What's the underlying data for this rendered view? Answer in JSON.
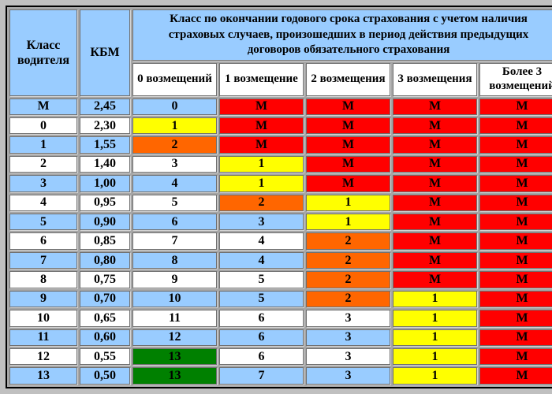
{
  "table": {
    "col_class_header": "Класс водителя",
    "col_kbm_header": "КБМ",
    "span_title": "Класс по окончании годового срока страхования с учетом наличия страховых случаев, произошедших в период действия предыдущих договоров обязательного страхования",
    "sub_columns": [
      "0 возмещений",
      "1 возмещение",
      "2 возмещения",
      "3 возмещения",
      "Более 3 возмещений"
    ],
    "rows": [
      {
        "class": "М",
        "kbm": "2,45",
        "bg": "blue",
        "cells": [
          {
            "v": "0",
            "bg": "row"
          },
          {
            "v": "М",
            "bg": "red"
          },
          {
            "v": "М",
            "bg": "red"
          },
          {
            "v": "М",
            "bg": "red"
          },
          {
            "v": "М",
            "bg": "red"
          }
        ]
      },
      {
        "class": "0",
        "kbm": "2,30",
        "bg": "white",
        "cells": [
          {
            "v": "1",
            "bg": "yellow"
          },
          {
            "v": "М",
            "bg": "red"
          },
          {
            "v": "М",
            "bg": "red"
          },
          {
            "v": "М",
            "bg": "red"
          },
          {
            "v": "М",
            "bg": "red"
          }
        ]
      },
      {
        "class": "1",
        "kbm": "1,55",
        "bg": "blue",
        "cells": [
          {
            "v": "2",
            "bg": "orange"
          },
          {
            "v": "М",
            "bg": "red"
          },
          {
            "v": "М",
            "bg": "red"
          },
          {
            "v": "М",
            "bg": "red"
          },
          {
            "v": "М",
            "bg": "red"
          }
        ]
      },
      {
        "class": "2",
        "kbm": "1,40",
        "bg": "white",
        "cells": [
          {
            "v": "3",
            "bg": "row"
          },
          {
            "v": "1",
            "bg": "yellow"
          },
          {
            "v": "М",
            "bg": "red"
          },
          {
            "v": "М",
            "bg": "red"
          },
          {
            "v": "М",
            "bg": "red"
          }
        ]
      },
      {
        "class": "3",
        "kbm": "1,00",
        "bg": "blue",
        "cells": [
          {
            "v": "4",
            "bg": "row"
          },
          {
            "v": "1",
            "bg": "yellow"
          },
          {
            "v": "М",
            "bg": "red"
          },
          {
            "v": "М",
            "bg": "red"
          },
          {
            "v": "М",
            "bg": "red"
          }
        ]
      },
      {
        "class": "4",
        "kbm": "0,95",
        "bg": "white",
        "cells": [
          {
            "v": "5",
            "bg": "row"
          },
          {
            "v": "2",
            "bg": "orange"
          },
          {
            "v": "1",
            "bg": "yellow"
          },
          {
            "v": "М",
            "bg": "red"
          },
          {
            "v": "М",
            "bg": "red"
          }
        ]
      },
      {
        "class": "5",
        "kbm": "0,90",
        "bg": "blue",
        "cells": [
          {
            "v": "6",
            "bg": "row"
          },
          {
            "v": "3",
            "bg": "row"
          },
          {
            "v": "1",
            "bg": "yellow"
          },
          {
            "v": "М",
            "bg": "red"
          },
          {
            "v": "М",
            "bg": "red"
          }
        ]
      },
      {
        "class": "6",
        "kbm": "0,85",
        "bg": "white",
        "cells": [
          {
            "v": "7",
            "bg": "row"
          },
          {
            "v": "4",
            "bg": "row"
          },
          {
            "v": "2",
            "bg": "orange"
          },
          {
            "v": "М",
            "bg": "red"
          },
          {
            "v": "М",
            "bg": "red"
          }
        ]
      },
      {
        "class": "7",
        "kbm": "0,80",
        "bg": "blue",
        "cells": [
          {
            "v": "8",
            "bg": "row"
          },
          {
            "v": "4",
            "bg": "row"
          },
          {
            "v": "2",
            "bg": "orange"
          },
          {
            "v": "М",
            "bg": "red"
          },
          {
            "v": "М",
            "bg": "red"
          }
        ]
      },
      {
        "class": "8",
        "kbm": "0,75",
        "bg": "white",
        "cells": [
          {
            "v": "9",
            "bg": "row"
          },
          {
            "v": "5",
            "bg": "row"
          },
          {
            "v": "2",
            "bg": "orange"
          },
          {
            "v": "М",
            "bg": "red"
          },
          {
            "v": "М",
            "bg": "red"
          }
        ]
      },
      {
        "class": "9",
        "kbm": "0,70",
        "bg": "blue",
        "cells": [
          {
            "v": "10",
            "bg": "row"
          },
          {
            "v": "5",
            "bg": "row"
          },
          {
            "v": "2",
            "bg": "orange"
          },
          {
            "v": "1",
            "bg": "yellow"
          },
          {
            "v": "М",
            "bg": "red"
          }
        ]
      },
      {
        "class": "10",
        "kbm": "0,65",
        "bg": "white",
        "cells": [
          {
            "v": "11",
            "bg": "row"
          },
          {
            "v": "6",
            "bg": "row"
          },
          {
            "v": "3",
            "bg": "row"
          },
          {
            "v": "1",
            "bg": "yellow"
          },
          {
            "v": "М",
            "bg": "red"
          }
        ]
      },
      {
        "class": "11",
        "kbm": "0,60",
        "bg": "blue",
        "cells": [
          {
            "v": "12",
            "bg": "row"
          },
          {
            "v": "6",
            "bg": "row"
          },
          {
            "v": "3",
            "bg": "row"
          },
          {
            "v": "1",
            "bg": "yellow"
          },
          {
            "v": "М",
            "bg": "red"
          }
        ]
      },
      {
        "class": "12",
        "kbm": "0,55",
        "bg": "white",
        "cells": [
          {
            "v": "13",
            "bg": "green"
          },
          {
            "v": "6",
            "bg": "row"
          },
          {
            "v": "3",
            "bg": "row"
          },
          {
            "v": "1",
            "bg": "yellow"
          },
          {
            "v": "М",
            "bg": "red"
          }
        ]
      },
      {
        "class": "13",
        "kbm": "0,50",
        "bg": "blue",
        "cells": [
          {
            "v": "13",
            "bg": "green"
          },
          {
            "v": "7",
            "bg": "row"
          },
          {
            "v": "3",
            "bg": "row"
          },
          {
            "v": "1",
            "bg": "yellow"
          },
          {
            "v": "М",
            "bg": "red"
          }
        ]
      }
    ]
  },
  "colors": {
    "blue": "#99CCFF",
    "white": "#FFFFFF",
    "yellow": "#FFFF00",
    "orange": "#FF6600",
    "red": "#FF0000",
    "green": "#008000",
    "frame": "#C0C0C0",
    "grid": "#A6A6A6",
    "cell_border": "#6F6F6F",
    "table_border": "#000000",
    "text": "#000000"
  }
}
